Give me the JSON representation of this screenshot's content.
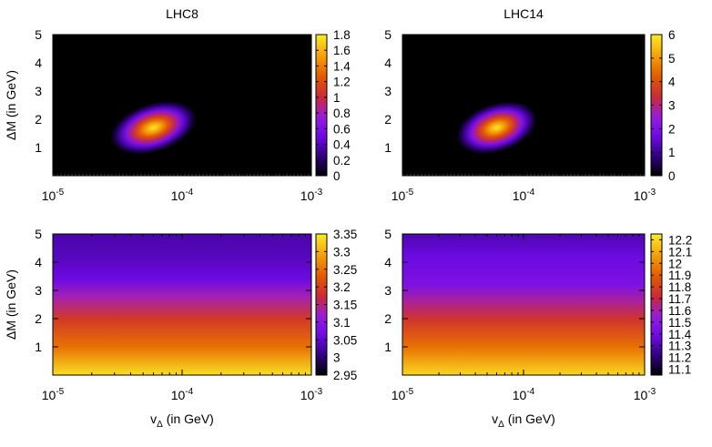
{
  "chart_data": [
    {
      "type": "heatmap",
      "title": "LHC8",
      "xlabel": "",
      "ylabel": "ΔM (in GeV)",
      "xscale": "log",
      "xlim": [
        1e-05,
        0.001
      ],
      "ylim": [
        0,
        5
      ],
      "xticks": [
        {
          "base": "10",
          "exp": "-5"
        },
        {
          "base": "10",
          "exp": "-4"
        },
        {
          "base": "10",
          "exp": "-3"
        }
      ],
      "yticks": [
        "1",
        "2",
        "3",
        "4",
        "5"
      ],
      "colorbar": {
        "range": [
          0,
          1.8
        ],
        "ticks": [
          "0",
          "0.2",
          "0.4",
          "0.6",
          "0.8",
          "1",
          "1.2",
          "1.4",
          "1.6",
          "1.8"
        ]
      },
      "pattern": "blob",
      "peak": {
        "x": 6e-05,
        "y": 1.7,
        "value": 1.8
      },
      "palette": "black-blue-red-yellow"
    },
    {
      "type": "heatmap",
      "title": "LHC14",
      "xlabel": "",
      "ylabel": "",
      "xscale": "log",
      "xlim": [
        1e-05,
        0.001
      ],
      "ylim": [
        0,
        5
      ],
      "xticks": [
        {
          "base": "10",
          "exp": "-5"
        },
        {
          "base": "10",
          "exp": "-4"
        },
        {
          "base": "10",
          "exp": "-3"
        }
      ],
      "yticks": [
        "1",
        "2",
        "3",
        "4",
        "5"
      ],
      "colorbar": {
        "range": [
          0,
          6
        ],
        "ticks": [
          "0",
          "1",
          "2",
          "3",
          "4",
          "5",
          "6"
        ]
      },
      "pattern": "blob",
      "peak": {
        "x": 6e-05,
        "y": 1.7,
        "value": 6
      },
      "palette": "black-blue-red-yellow"
    },
    {
      "type": "heatmap",
      "title": "",
      "xlabel": {
        "main": "v",
        "sub": "Δ",
        "rest": " (in GeV)"
      },
      "ylabel": "ΔM (in GeV)",
      "xscale": "log",
      "xlim": [
        1e-05,
        0.001
      ],
      "ylim": [
        0,
        5
      ],
      "xticks": [
        {
          "base": "10",
          "exp": "-5"
        },
        {
          "base": "10",
          "exp": "-4"
        },
        {
          "base": "10",
          "exp": "-3"
        }
      ],
      "yticks": [
        "1",
        "2",
        "3",
        "4",
        "5"
      ],
      "colorbar": {
        "range": [
          2.95,
          3.35
        ],
        "ticks": [
          "2.95",
          "3",
          "3.05",
          "3.1",
          "3.15",
          "3.2",
          "3.25",
          "3.3",
          "3.35"
        ]
      },
      "pattern": "vertical-gradient",
      "value_profile": [
        {
          "y": 0,
          "value": 3.34
        },
        {
          "y": 1,
          "value": 3.25
        },
        {
          "y": 2,
          "value": 3.19
        },
        {
          "y": 2.8,
          "value": 3.13
        },
        {
          "y": 3.4,
          "value": 3.06
        },
        {
          "y": 4.2,
          "value": 3.04
        },
        {
          "y": 5,
          "value": 3.03
        }
      ],
      "palette": "black-blue-red-yellow"
    },
    {
      "type": "heatmap",
      "title": "",
      "xlabel": {
        "main": "v",
        "sub": "Δ",
        "rest": " (in GeV)"
      },
      "ylabel": "",
      "xscale": "log",
      "xlim": [
        1e-05,
        0.001
      ],
      "ylim": [
        0,
        5
      ],
      "xticks": [
        {
          "base": "10",
          "exp": "-5"
        },
        {
          "base": "10",
          "exp": "-4"
        },
        {
          "base": "10",
          "exp": "-3"
        }
      ],
      "yticks": [
        "1",
        "2",
        "3",
        "4",
        "5"
      ],
      "colorbar": {
        "range": [
          11.05,
          12.25
        ],
        "ticks": [
          "11.1",
          "11.2",
          "11.3",
          "11.4",
          "11.5",
          "11.6",
          "11.7",
          "11.8",
          "11.9",
          "12",
          "12.1",
          "12.2"
        ]
      },
      "pattern": "vertical-gradient",
      "value_profile": [
        {
          "y": 0,
          "value": 12.2
        },
        {
          "y": 1,
          "value": 11.95
        },
        {
          "y": 2,
          "value": 11.75
        },
        {
          "y": 2.6,
          "value": 11.62
        },
        {
          "y": 3.2,
          "value": 11.45
        },
        {
          "y": 4.2,
          "value": 11.38
        },
        {
          "y": 5,
          "value": 11.3
        }
      ],
      "palette": "black-blue-red-yellow"
    }
  ]
}
